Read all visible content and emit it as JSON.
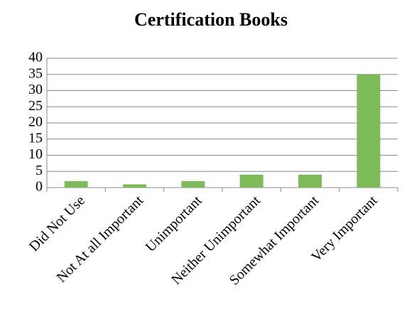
{
  "chart_data": {
    "type": "bar",
    "title": "Certification Books",
    "categories": [
      "Did Not Use",
      "Not At all Important",
      "Unimportant",
      "Neither Unimportant",
      "Somewhat Important",
      "Very Important"
    ],
    "values": [
      2,
      1,
      2,
      4,
      4,
      35
    ],
    "color": "#7dba59",
    "ylim": [
      0,
      40
    ],
    "yticks": [
      0,
      5,
      10,
      15,
      20,
      25,
      30,
      35,
      40
    ],
    "grid": true
  }
}
